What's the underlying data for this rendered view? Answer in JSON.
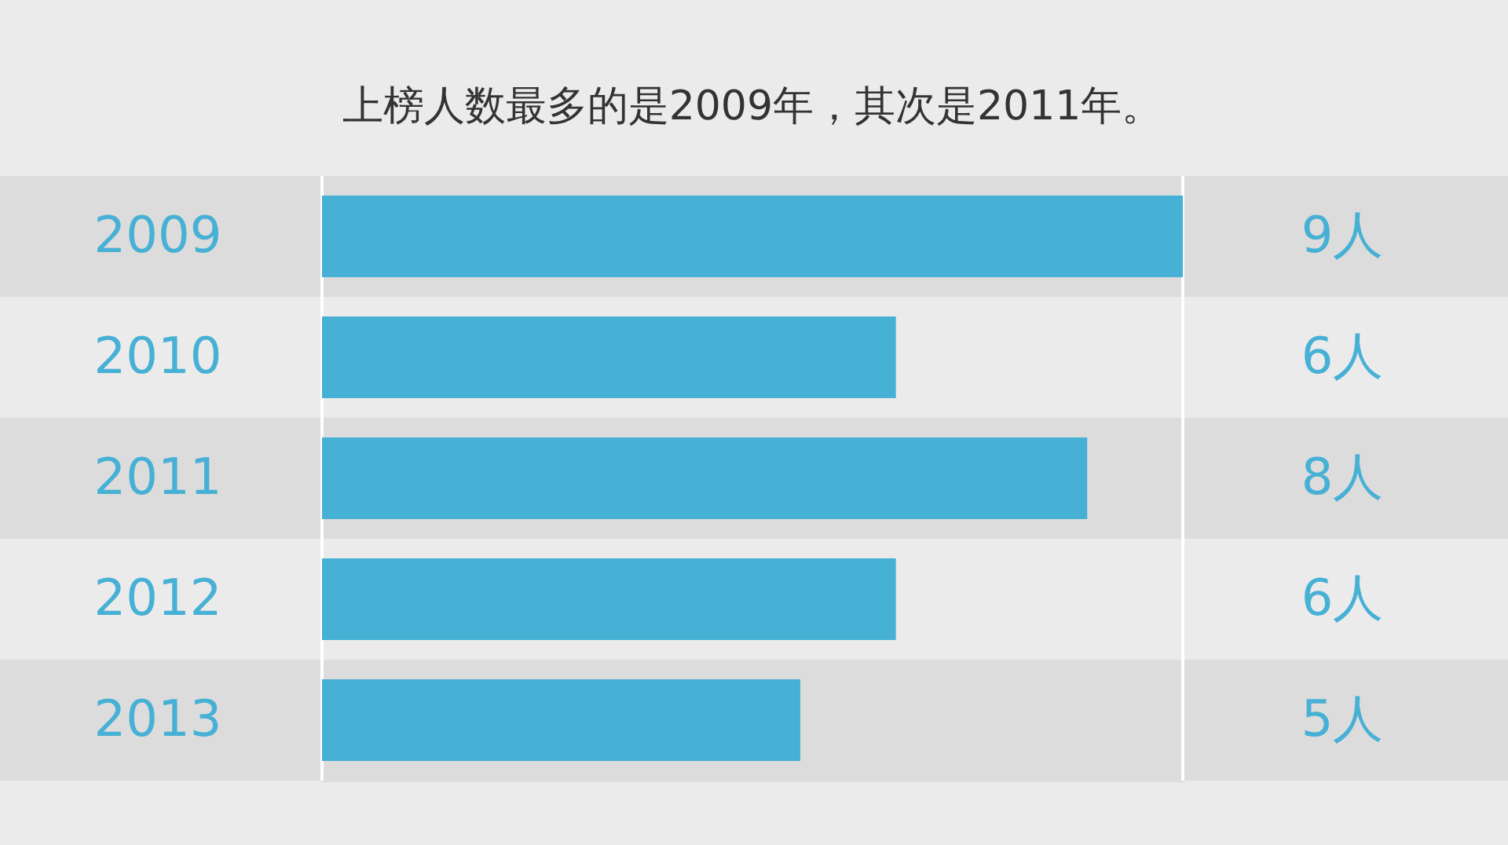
{
  "chart_data": {
    "type": "bar",
    "orientation": "horizontal",
    "title": "上榜人数最多的是2009年，其次是2011年。",
    "categories": [
      "2009",
      "2010",
      "2011",
      "2012",
      "2013"
    ],
    "values": [
      9,
      6,
      8,
      6,
      5
    ],
    "color": "#47b0d5",
    "value_labels": [
      "9人",
      "6人",
      "8人",
      "6人",
      "5人"
    ]
  }
}
